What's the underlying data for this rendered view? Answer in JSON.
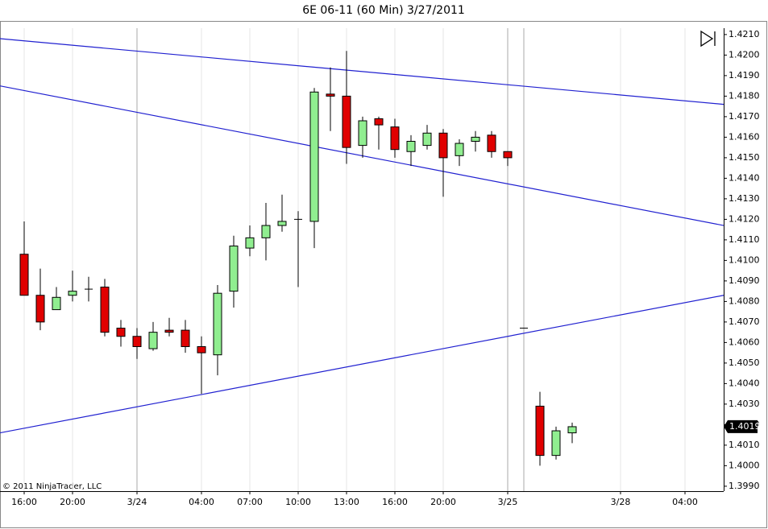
{
  "chart_data": {
    "type": "candlestick",
    "title": "6E 06-11 (60 Min)  3/27/2011",
    "copyright": "© 2011 NinjaTrader, LLC",
    "categories": [
      "16:00",
      null,
      null,
      "20:00",
      null,
      null,
      null,
      "3/24",
      null,
      null,
      null,
      "04:00",
      null,
      null,
      "07:00",
      null,
      null,
      "10:00",
      null,
      null,
      "13:00",
      null,
      null,
      "16:00",
      null,
      null,
      "20:00",
      null,
      null,
      null,
      "3/25",
      null,
      null,
      null,
      null,
      null,
      null,
      "3/28",
      null,
      null,
      null,
      "04:00",
      null,
      null
    ],
    "series": [
      {
        "name": "open",
        "values": [
          1.4103,
          1.4083,
          1.4076,
          1.4083,
          1.4086,
          1.4087,
          1.4067,
          1.4063,
          1.4057,
          1.4066,
          1.4066,
          1.4058,
          1.4054,
          1.4085,
          1.4106,
          1.4111,
          1.4117,
          1.412,
          1.4119,
          1.4181,
          1.418,
          1.4156,
          1.4169,
          1.4165,
          1.4153,
          1.4156,
          1.4162,
          1.4151,
          1.4158,
          1.4161,
          1.4153,
          1.4067,
          1.4029,
          1.4005,
          1.4016,
          null,
          null,
          null,
          null,
          null,
          null,
          null,
          null,
          null
        ]
      },
      {
        "name": "high",
        "values": [
          1.4119,
          1.4096,
          1.4087,
          1.4095,
          1.4092,
          1.4091,
          1.4071,
          1.4067,
          1.407,
          1.4072,
          1.4071,
          1.4063,
          1.4088,
          1.4112,
          1.4117,
          1.4128,
          1.4132,
          1.4124,
          1.4184,
          1.4194,
          1.4202,
          1.417,
          1.417,
          1.4169,
          1.4161,
          1.4166,
          1.4164,
          1.4159,
          1.4163,
          1.4163,
          1.4153,
          1.4067,
          1.4036,
          1.4019,
          1.4021,
          null,
          null,
          null,
          null,
          null,
          null,
          null,
          null,
          null
        ]
      },
      {
        "name": "low",
        "values": [
          1.4083,
          1.4066,
          1.4076,
          1.408,
          1.408,
          1.4063,
          1.4058,
          1.4052,
          1.4056,
          1.4063,
          1.4055,
          1.4035,
          1.4044,
          1.4077,
          1.4102,
          1.41,
          1.4114,
          1.4087,
          1.4106,
          1.4163,
          1.4147,
          1.415,
          1.4154,
          1.415,
          1.4146,
          1.4154,
          1.4131,
          1.4146,
          1.4153,
          1.415,
          1.4146,
          1.4067,
          1.4,
          1.4003,
          1.4011,
          null,
          null,
          null,
          null,
          null,
          null,
          null,
          null,
          null
        ]
      },
      {
        "name": "close",
        "values": [
          1.4083,
          1.407,
          1.4082,
          1.4085,
          1.4086,
          1.4065,
          1.4063,
          1.4058,
          1.4065,
          1.4065,
          1.4058,
          1.4055,
          1.4084,
          1.4107,
          1.4111,
          1.4117,
          1.4119,
          1.412,
          1.4182,
          1.418,
          1.4155,
          1.4168,
          1.4166,
          1.4154,
          1.4158,
          1.4162,
          1.415,
          1.4157,
          1.416,
          1.4153,
          1.415,
          1.4067,
          1.4005,
          1.4017,
          1.4019,
          null,
          null,
          null,
          null,
          null,
          null,
          null,
          null,
          null
        ]
      }
    ],
    "up_color": "#90ee90",
    "down_color": "#e00000",
    "last_price": 1.4019,
    "ylim": [
      1.39876,
      1.42131
    ],
    "yticks": [
      {
        "value": 1.399,
        "label": "1.3990"
      },
      {
        "value": 1.4,
        "label": "1.4000"
      },
      {
        "value": 1.401,
        "label": "1.4010"
      },
      {
        "value": 1.402,
        "label": "1.4020"
      },
      {
        "value": 1.403,
        "label": "1.4030"
      },
      {
        "value": 1.404,
        "label": "1.4040"
      },
      {
        "value": 1.405,
        "label": "1.4050"
      },
      {
        "value": 1.406,
        "label": "1.4060"
      },
      {
        "value": 1.407,
        "label": "1.4070"
      },
      {
        "value": 1.408,
        "label": "1.4080"
      },
      {
        "value": 1.409,
        "label": "1.4090"
      },
      {
        "value": 1.41,
        "label": "1.4100"
      },
      {
        "value": 1.411,
        "label": "1.4110"
      },
      {
        "value": 1.412,
        "label": "1.4120"
      },
      {
        "value": 1.413,
        "label": "1.4130"
      },
      {
        "value": 1.414,
        "label": "1.4140"
      },
      {
        "value": 1.415,
        "label": "1.4150"
      },
      {
        "value": 1.416,
        "label": "1.4160"
      },
      {
        "value": 1.417,
        "label": "1.4170"
      },
      {
        "value": 1.418,
        "label": "1.4180"
      },
      {
        "value": 1.419,
        "label": "1.4190"
      },
      {
        "value": 1.42,
        "label": "1.4200"
      },
      {
        "value": 1.421,
        "label": "1.4210"
      }
    ],
    "trendlines": [
      {
        "color": "#2020d0",
        "x": [
          -1.5,
          43.4
        ],
        "y": [
          1.4208,
          1.4176
        ]
      },
      {
        "color": "#2020d0",
        "x": [
          -1.5,
          43.4
        ],
        "y": [
          1.4185,
          1.4117
        ]
      },
      {
        "color": "#2020d0",
        "x": [
          -1.5,
          43.4
        ],
        "y": [
          1.4016,
          1.4083
        ]
      }
    ]
  }
}
